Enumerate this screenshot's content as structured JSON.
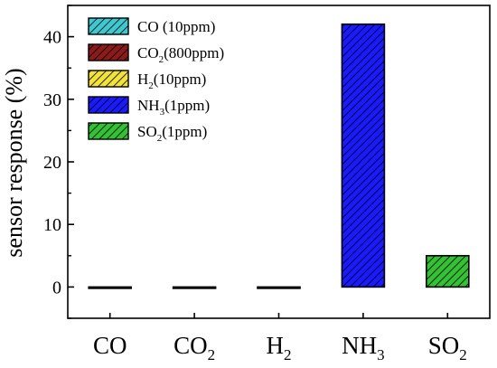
{
  "chart_data": {
    "type": "bar",
    "ylabel": "sensor response (%)",
    "ylim": [
      -5,
      45
    ],
    "yticks": [
      0,
      10,
      20,
      30,
      40
    ],
    "grid": false,
    "legend_position": "top-left",
    "categories": [
      {
        "base": "CO",
        "sub": ""
      },
      {
        "base": "CO",
        "sub": "2"
      },
      {
        "base": "H",
        "sub": "2"
      },
      {
        "base": "NH",
        "sub": "3"
      },
      {
        "base": "SO",
        "sub": "2"
      }
    ],
    "values": [
      0,
      0,
      0,
      42,
      5
    ],
    "colors": [
      "#3fc8cf",
      "#8b1a1a",
      "#f2e23a",
      "#1a1aff",
      "#33c233"
    ],
    "legend": [
      {
        "base": "CO",
        "sub": "",
        "rest": " (10ppm)"
      },
      {
        "base": "CO",
        "sub": "2",
        "rest": "(800ppm)"
      },
      {
        "base": "H",
        "sub": "2",
        "rest": "(10ppm)"
      },
      {
        "base": "NH",
        "sub": "3",
        "rest": "(1ppm)"
      },
      {
        "base": "SO",
        "sub": "2",
        "rest": "(1ppm)"
      }
    ]
  }
}
